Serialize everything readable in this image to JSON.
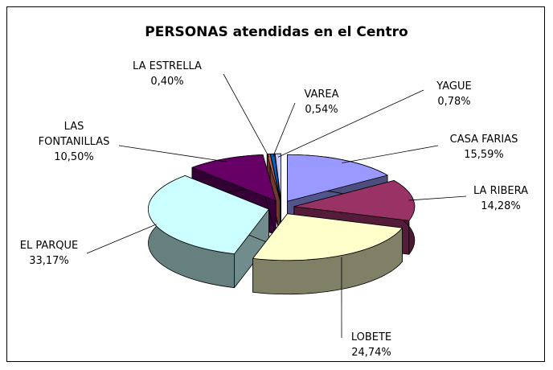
{
  "chart_data": {
    "type": "pie3d",
    "title": "PERSONAS atendidas en el Centro",
    "categories": [
      "CASA FARIAS",
      "LA RIBERA",
      "LOBETE",
      "EL PARQUE",
      "LAS FONTANILLAS",
      "LA ESTRELLA",
      "VAREA",
      "YAGUE"
    ],
    "values": [
      15.59,
      14.28,
      24.74,
      33.17,
      10.5,
      0.4,
      0.54,
      0.78
    ],
    "value_labels": [
      "15,59%",
      "14,28%",
      "24,74%",
      "33,17%",
      "10,50%",
      "0,40%",
      "0,54%",
      "0,78%"
    ],
    "colors": [
      "#9999ff",
      "#993366",
      "#ffffcc",
      "#ccffff",
      "#660066",
      "#cc6655",
      "#0066cc",
      "#ccccff"
    ]
  }
}
